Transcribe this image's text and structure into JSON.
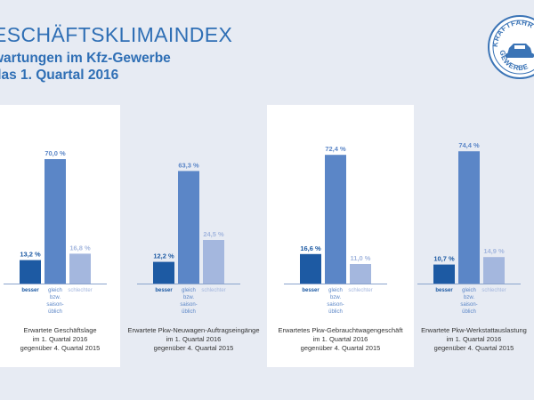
{
  "header": {
    "title": "ESCHÄFTSKLIMAINDEX",
    "subtitle_line1": "wartungen im Kfz-Gewerbe",
    "subtitle_line2": "das 1. Quartal 2016"
  },
  "seal": {
    "text_top": "KRAFTFAHR",
    "text_bottom": "GEWERBE",
    "icon": "car-icon",
    "color": "#3b74b6"
  },
  "colors": {
    "besser": "#1d5aa3",
    "gleich": "#5b86c7",
    "schlechter": "#a4b7de",
    "axis": "#8aa3cc"
  },
  "chart_data": [
    {
      "type": "bar",
      "categories": [
        "besser",
        "gleich bzw. saison-üblich",
        "schlechter"
      ],
      "category_lines": [
        [
          "besser"
        ],
        [
          "gleich",
          "bzw.",
          "saison-",
          "üblich"
        ],
        [
          "schlechter"
        ]
      ],
      "values": [
        13.2,
        70.0,
        16.8
      ],
      "value_labels": [
        "13,2 %",
        "70,0 %",
        "16,8 %"
      ],
      "caption": [
        "Erwartete Geschäftslage",
        "im 1. Quartal 2016",
        "gegenüber 4. Quartal 2015"
      ],
      "ylim": [
        0,
        80
      ]
    },
    {
      "type": "bar",
      "categories": [
        "besser",
        "gleich bzw. saison-üblich",
        "schlechter"
      ],
      "category_lines": [
        [
          "besser"
        ],
        [
          "gleich",
          "bzw.",
          "saison-",
          "üblich"
        ],
        [
          "schlechter"
        ]
      ],
      "values": [
        12.2,
        63.3,
        24.5
      ],
      "value_labels": [
        "12,2 %",
        "63,3 %",
        "24,5 %"
      ],
      "caption": [
        "Erwartete Pkw-Neuwagen-Auftragseingänge",
        "im 1. Quartal  2016",
        "gegenüber 4. Quartal 2015"
      ],
      "ylim": [
        0,
        80
      ]
    },
    {
      "type": "bar",
      "categories": [
        "besser",
        "gleich bzw. saison-üblich",
        "schlechter"
      ],
      "category_lines": [
        [
          "besser"
        ],
        [
          "gleich",
          "bzw.",
          "saison-",
          "üblich"
        ],
        [
          "schlechter"
        ]
      ],
      "values": [
        16.6,
        72.4,
        11.0
      ],
      "value_labels": [
        "16,6 %",
        "72,4 %",
        "11,0 %"
      ],
      "caption": [
        "Erwartetes Pkw-Gebrauchtwagengeschäft",
        "im 1. Quartal 2016",
        "gegenüber 4. Quartal 2015"
      ],
      "ylim": [
        0,
        80
      ]
    },
    {
      "type": "bar",
      "categories": [
        "besser",
        "gleich bzw. saison-üblich",
        "schlechter"
      ],
      "category_lines": [
        [
          "besser"
        ],
        [
          "gleich",
          "bzw.",
          "saison-",
          "üblich"
        ],
        [
          "schlechter"
        ]
      ],
      "values": [
        10.7,
        74.4,
        14.9
      ],
      "value_labels": [
        "10,7 %",
        "74,4 %",
        "14,9 %"
      ],
      "caption": [
        "Erwartete Pkw-Werkstattauslastung",
        "im 1. Quartal 2016",
        "gegenüber 4. Quartal 2015"
      ],
      "ylim": [
        0,
        80
      ]
    }
  ]
}
